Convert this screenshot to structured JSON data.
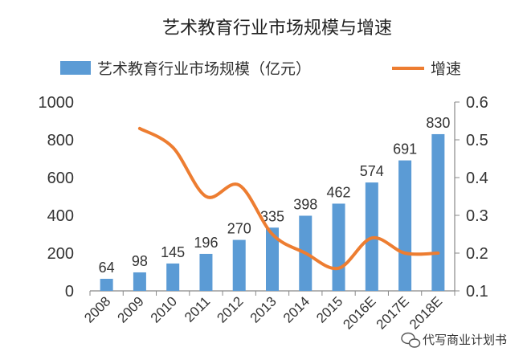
{
  "chart_data": {
    "type": "bar",
    "title": "艺术教育行业市场规模与增速",
    "categories": [
      "2008",
      "2009",
      "2010",
      "2011",
      "2012",
      "2013",
      "2014",
      "2015",
      "2016E",
      "2017E",
      "2018E"
    ],
    "series": [
      {
        "name": "艺术教育行业市场规模（亿元）",
        "type": "bar",
        "axis": "left",
        "color": "#5b9bd5",
        "values": [
          64,
          98,
          145,
          196,
          270,
          335,
          398,
          462,
          574,
          691,
          830
        ]
      },
      {
        "name": "增速",
        "type": "line",
        "axis": "right",
        "color": "#ed7d31",
        "values": [
          null,
          0.53,
          0.48,
          0.35,
          0.38,
          0.25,
          0.2,
          0.16,
          0.24,
          0.2,
          0.2
        ]
      }
    ],
    "ylim_left": [
      0,
      1000
    ],
    "yticks_left": [
      "0",
      "200",
      "400",
      "600",
      "800",
      "1000"
    ],
    "ylim_right": [
      0.1,
      0.6
    ],
    "yticks_right": [
      "0.1",
      "0.2",
      "0.3",
      "0.4",
      "0.5",
      "0.6"
    ],
    "legend_position": "top",
    "grid": false
  },
  "watermark": {
    "icon": "wechat-icon",
    "text": "代写商业计划书"
  }
}
